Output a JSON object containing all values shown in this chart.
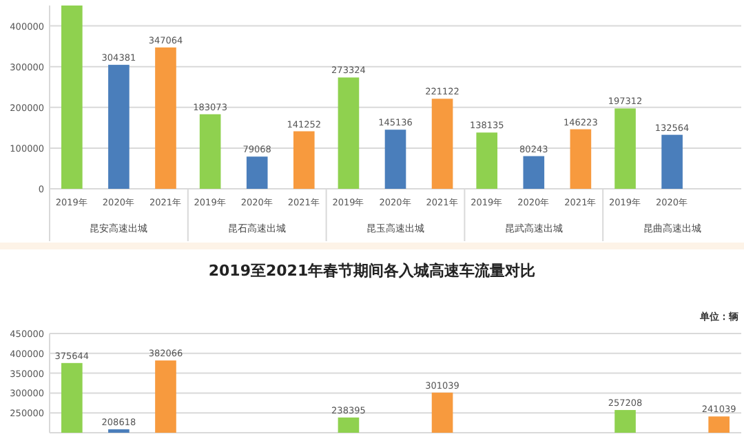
{
  "chart_data": [
    {
      "type": "bar",
      "categories": [
        "昆安高速出城",
        "昆石高速出城",
        "昆玉高速出城",
        "昆武高速出城",
        "昆曲高速出城"
      ],
      "series": [
        {
          "name": "2019年",
          "color": "#8fd14f",
          "values": [
            450000,
            183073,
            273324,
            138135,
            197312
          ],
          "value_labels": [
            null,
            "183073",
            "273324",
            "138135",
            "197312"
          ]
        },
        {
          "name": "2020年",
          "color": "#4a7ebb",
          "values": [
            304381,
            79068,
            145136,
            80243,
            132564
          ],
          "value_labels": [
            "304381",
            "79068",
            "145136",
            "80243",
            "132564"
          ]
        },
        {
          "name": "2021年",
          "color": "#f79a3e",
          "values": [
            347064,
            141252,
            221122,
            146223,
            null
          ],
          "value_labels": [
            "347064",
            "141252",
            "221122",
            "146223",
            null
          ]
        }
      ],
      "ylim": [
        0,
        450000
      ],
      "yticks": [
        0,
        100000,
        200000,
        300000,
        400000
      ],
      "grid": "y"
    },
    {
      "type": "bar",
      "title": "2019至2021年春节期间各入城高速车流量对比",
      "annotations": [
        "单位：辆"
      ],
      "categories": [
        null,
        null,
        null,
        null,
        null
      ],
      "series": [
        {
          "color": "#8fd14f",
          "values": [
            375644,
            null,
            238395,
            null,
            257208
          ]
        },
        {
          "color": "#4a7ebb",
          "values": [
            208618,
            null,
            null,
            null,
            null
          ]
        },
        {
          "color": "#f79a3e",
          "values": [
            382066,
            null,
            301039,
            null,
            241039
          ]
        }
      ],
      "ylim": [
        200000,
        450000
      ],
      "yticks": [
        250000,
        300000,
        350000,
        400000,
        450000
      ],
      "grid": "y",
      "data_labels": true
    }
  ]
}
